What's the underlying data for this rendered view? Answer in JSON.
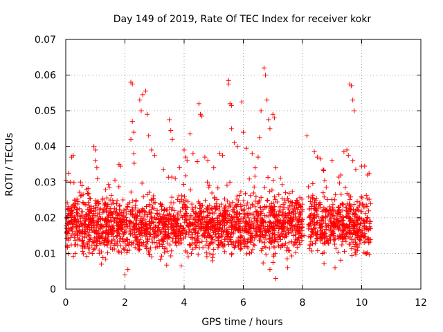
{
  "chart_data": {
    "type": "scatter",
    "title": "Day 149 of 2019, Rate Of TEC Index for receiver kokr",
    "xlabel": "GPS time / hours",
    "ylabel": "ROTI / TECUs",
    "xlim": [
      0,
      12
    ],
    "ylim": [
      0,
      0.07
    ],
    "x_ticks": [
      0,
      2,
      4,
      6,
      8,
      10,
      12
    ],
    "y_ticks": [
      0,
      0.01,
      0.02,
      0.03,
      0.04,
      0.05,
      0.06,
      0.07
    ],
    "x_tick_labels": [
      "0",
      "2",
      "4",
      "6",
      "8",
      "10",
      "12"
    ],
    "y_tick_labels": [
      "0",
      "0.01",
      "0.02",
      "0.03",
      "0.04",
      "0.05",
      "0.06",
      "0.07"
    ],
    "grid": true,
    "marker": "+",
    "color": "#ff0000",
    "data_gap_hours": [
      8.0,
      8.2
    ],
    "series": [
      {
        "name": "ROTI",
        "points": [
          [
            0.05,
            0.012
          ],
          [
            0.1,
            0.0325
          ],
          [
            0.15,
            0.03
          ],
          [
            0.2,
            0.037
          ],
          [
            0.25,
            0.0375
          ],
          [
            0.3,
            0.025
          ],
          [
            0.5,
            0.03
          ],
          [
            0.55,
            0.029
          ],
          [
            0.7,
            0.028
          ],
          [
            0.8,
            0.0255
          ],
          [
            0.95,
            0.04
          ],
          [
            1.0,
            0.039
          ],
          [
            1.0,
            0.036
          ],
          [
            1.05,
            0.034
          ],
          [
            1.1,
            0.0245
          ],
          [
            1.3,
            0.0235
          ],
          [
            1.5,
            0.025
          ],
          [
            1.8,
            0.035
          ],
          [
            1.85,
            0.0345
          ],
          [
            2.0,
            0.004
          ],
          [
            2.1,
            0.0055
          ],
          [
            2.2,
            0.058
          ],
          [
            2.25,
            0.0575
          ],
          [
            2.2,
            0.042
          ],
          [
            2.25,
            0.047
          ],
          [
            2.3,
            0.044
          ],
          [
            2.3,
            0.038
          ],
          [
            2.5,
            0.053
          ],
          [
            2.55,
            0.05
          ],
          [
            2.6,
            0.0545
          ],
          [
            2.7,
            0.0555
          ],
          [
            2.75,
            0.049
          ],
          [
            2.8,
            0.043
          ],
          [
            2.9,
            0.039
          ],
          [
            3.0,
            0.0375
          ],
          [
            3.3,
            0.0335
          ],
          [
            3.5,
            0.0475
          ],
          [
            3.55,
            0.0445
          ],
          [
            3.6,
            0.042
          ],
          [
            3.7,
            0.031
          ],
          [
            4.0,
            0.039
          ],
          [
            4.05,
            0.037
          ],
          [
            4.1,
            0.036
          ],
          [
            4.2,
            0.0435
          ],
          [
            4.3,
            0.038
          ],
          [
            4.5,
            0.052
          ],
          [
            4.55,
            0.049
          ],
          [
            4.6,
            0.0485
          ],
          [
            4.7,
            0.037
          ],
          [
            4.8,
            0.036
          ],
          [
            5.0,
            0.034
          ],
          [
            5.2,
            0.038
          ],
          [
            5.3,
            0.0375
          ],
          [
            5.5,
            0.0585
          ],
          [
            5.5,
            0.0575
          ],
          [
            5.55,
            0.052
          ],
          [
            5.6,
            0.0515
          ],
          [
            5.6,
            0.045
          ],
          [
            5.7,
            0.041
          ],
          [
            5.8,
            0.04
          ],
          [
            5.95,
            0.0525
          ],
          [
            6.0,
            0.044
          ],
          [
            6.1,
            0.0395
          ],
          [
            6.3,
            0.038
          ],
          [
            6.4,
            0.034
          ],
          [
            6.5,
            0.037
          ],
          [
            6.55,
            0.0425
          ],
          [
            6.6,
            0.05
          ],
          [
            6.7,
            0.062
          ],
          [
            6.75,
            0.06
          ],
          [
            6.8,
            0.053
          ],
          [
            6.85,
            0.0475
          ],
          [
            6.9,
            0.045
          ],
          [
            7.0,
            0.049
          ],
          [
            7.05,
            0.048
          ],
          [
            7.1,
            0.034
          ],
          [
            7.2,
            0.0265
          ],
          [
            7.4,
            0.025
          ],
          [
            7.5,
            0.0255
          ],
          [
            7.6,
            0.0245
          ],
          [
            7.8,
            0.023
          ],
          [
            7.9,
            0.0215
          ],
          [
            8.0,
            0.0195
          ],
          [
            8.05,
            0.015
          ],
          [
            8.15,
            0.043
          ],
          [
            8.4,
            0.0385
          ],
          [
            8.5,
            0.037
          ],
          [
            8.6,
            0.0365
          ],
          [
            8.7,
            0.0335
          ],
          [
            9.0,
            0.036
          ],
          [
            9.3,
            0.032
          ],
          [
            9.4,
            0.0385
          ],
          [
            9.5,
            0.039
          ],
          [
            9.55,
            0.0375
          ],
          [
            9.6,
            0.0575
          ],
          [
            9.65,
            0.057
          ],
          [
            9.7,
            0.053
          ],
          [
            9.75,
            0.05
          ],
          [
            9.7,
            0.036
          ],
          [
            9.8,
            0.0335
          ],
          [
            10.0,
            0.0345
          ],
          [
            10.1,
            0.0345
          ],
          [
            10.2,
            0.032
          ],
          [
            10.25,
            0.0325
          ],
          [
            10.3,
            0.024
          ],
          [
            7.1,
            0.003
          ],
          [
            7.5,
            0.006
          ],
          [
            9.1,
            0.006
          ],
          [
            6.9,
            0.0055
          ],
          [
            3.9,
            0.0065
          ]
        ],
        "dense_band": {
          "x_range": [
            0.0,
            10.3
          ],
          "y_typical": [
            0.005,
            0.028
          ],
          "median": 0.013
        }
      }
    ]
  }
}
